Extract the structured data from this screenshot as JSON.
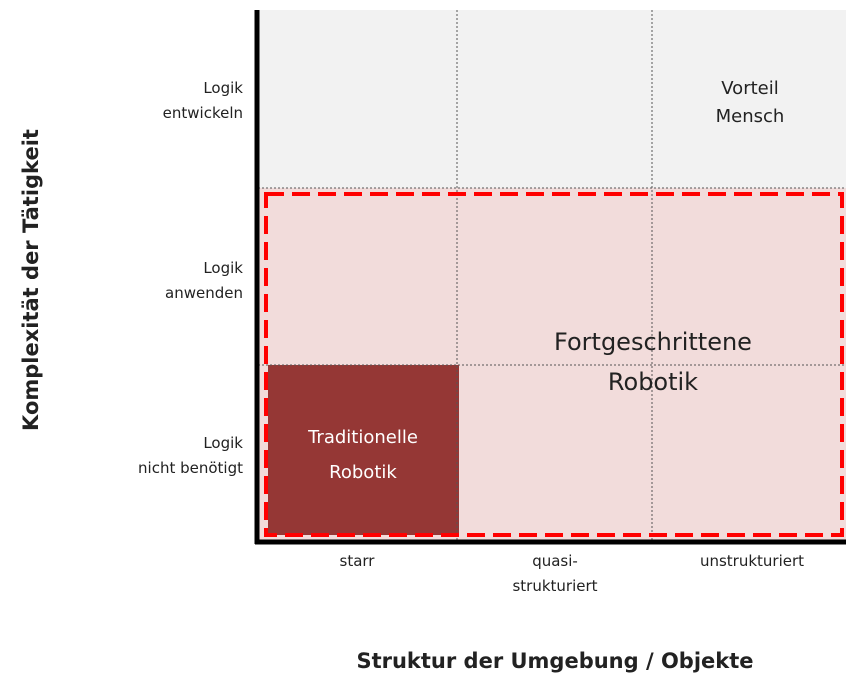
{
  "y_axis": {
    "title": "Komplexität der Tätigkeit",
    "levels": [
      [
        "Logik",
        "entwickeln"
      ],
      [
        "Logik",
        "anwenden"
      ],
      [
        "Logik",
        "nicht benötigt"
      ]
    ]
  },
  "x_axis": {
    "title": "Struktur der Umgebung / Objekte",
    "levels": [
      [
        "starr"
      ],
      [
        "quasi-",
        "strukturiert"
      ],
      [
        "unstrukturiert"
      ]
    ]
  },
  "regions": {
    "human": [
      "Vorteil",
      "Mensch"
    ],
    "advanced": [
      "Fortgeschrittene",
      "Robotik"
    ],
    "traditional": [
      "Traditionelle",
      "Robotik"
    ]
  }
}
